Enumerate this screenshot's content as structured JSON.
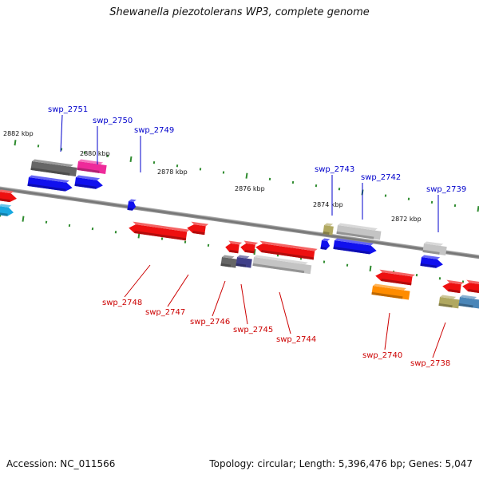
{
  "title": "Shewanella piezotolerans WP3, complete genome",
  "footer": {
    "accession": "Accession: NC_011566",
    "summary": "Topology: circular; Length: 5,396,476 bp; Genes: 5,047"
  },
  "colors": {
    "backbone": "#7a7a7a",
    "tick": "#2e8b2e",
    "upper_label": "#0000cc",
    "lower_label": "#cc0000",
    "blue": "#1010ee",
    "red": "#ee1010",
    "gray": "#666666",
    "lightgray": "#c4c4c4",
    "magenta": "#ee2a9a",
    "olive": "#b0a860",
    "navy": "#40408a",
    "orange": "#ff8c00",
    "cyan": "#1aa8e0",
    "steel": "#4a86b8"
  },
  "position_labels": [
    "2882 kbp",
    "2880 kbp",
    "2878 kbp",
    "2876 kbp",
    "2874 kbp",
    "2872 kbp"
  ],
  "upper_genes": [
    {
      "id": "g2751",
      "label": "swp_2751"
    },
    {
      "id": "g2750",
      "label": "swp_2750"
    },
    {
      "id": "g2749",
      "label": "swp_2749"
    },
    {
      "id": "g2743",
      "label": "swp_2743"
    },
    {
      "id": "g2742",
      "label": "swp_2742"
    },
    {
      "id": "g2739",
      "label": "swp_2739"
    }
  ],
  "lower_genes": [
    {
      "id": "g2748",
      "label": "swp_2748"
    },
    {
      "id": "g2747",
      "label": "swp_2747"
    },
    {
      "id": "g2746",
      "label": "swp_2746"
    },
    {
      "id": "g2745",
      "label": "swp_2745"
    },
    {
      "id": "g2744",
      "label": "swp_2744"
    },
    {
      "id": "g2740",
      "label": "swp_2740"
    },
    {
      "id": "g2738",
      "label": "swp_2738"
    }
  ]
}
